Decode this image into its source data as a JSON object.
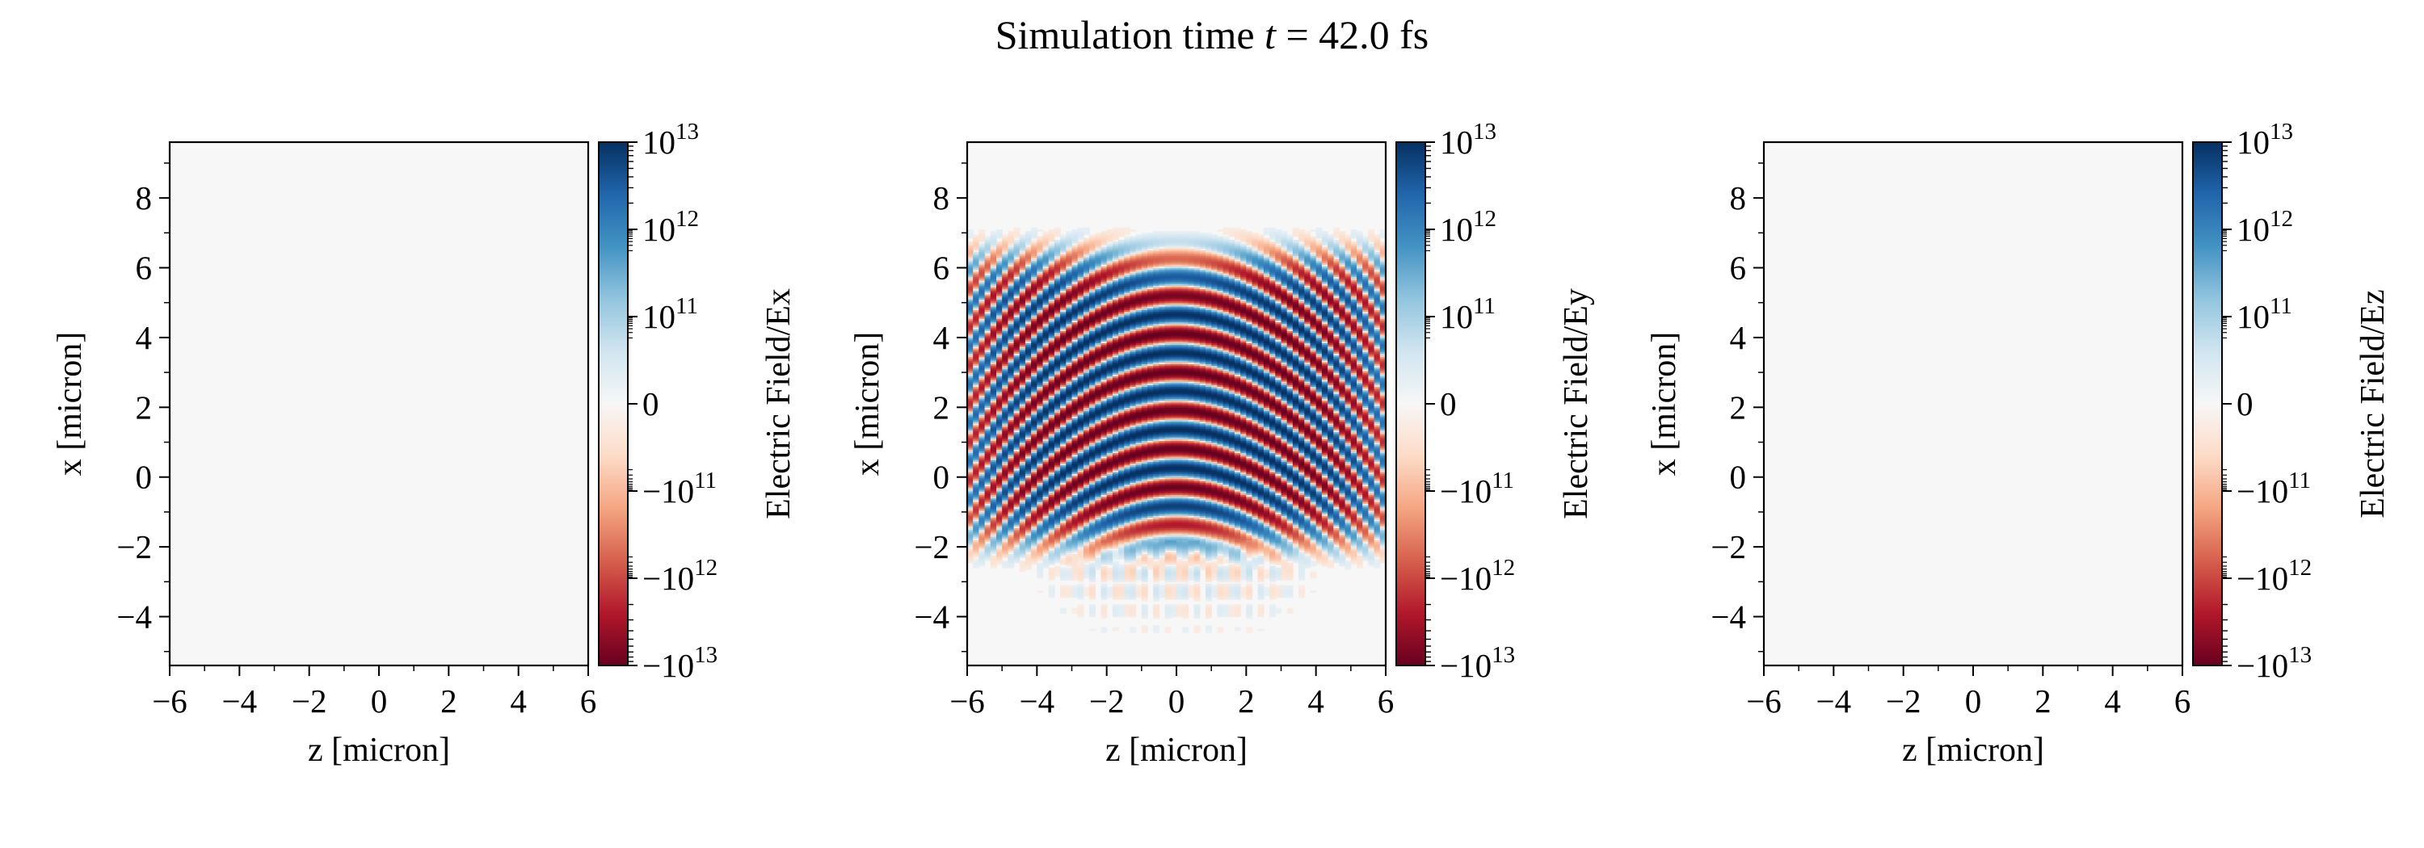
{
  "figure": {
    "title_prefix": "Simulation time ",
    "title_var": "t",
    "title_rest": " = 42.0 fs"
  },
  "chart_data": [
    {
      "type": "heatmap",
      "field": "Ex",
      "xlabel": "z [micron]",
      "ylabel": "x [micron]",
      "colorbar_label": "Electric Field/Ex",
      "xlim": [
        -6,
        6
      ],
      "ylim": [
        -5.4,
        9.6
      ],
      "xticks": [
        -6,
        -4,
        -2,
        0,
        2,
        4,
        6
      ],
      "yticks": [
        -4,
        -2,
        0,
        2,
        4,
        6,
        8
      ],
      "xtick_labels": [
        "−6",
        "−4",
        "−2",
        "0",
        "2",
        "4",
        "6"
      ],
      "ytick_labels": [
        "−4",
        "−2",
        "0",
        "2",
        "4",
        "6",
        "8"
      ],
      "colorscale": "RdBu symlog",
      "colorbar_range": [
        -10000000000000.0,
        10000000000000.0
      ],
      "colorbar_ticks": [
        {
          "base": "−10",
          "exp": "13"
        },
        {
          "base": "−10",
          "exp": "12"
        },
        {
          "base": "−10",
          "exp": "11"
        },
        {
          "base": "0",
          "exp": ""
        },
        {
          "base": "10",
          "exp": "11"
        },
        {
          "base": "10",
          "exp": "12"
        },
        {
          "base": "10",
          "exp": "13"
        }
      ],
      "field_present": false
    },
    {
      "type": "heatmap",
      "field": "Ey",
      "xlabel": "z [micron]",
      "ylabel": "x [micron]",
      "colorbar_label": "Electric Field/Ey",
      "xlim": [
        -6,
        6
      ],
      "ylim": [
        -5.4,
        9.6
      ],
      "xticks": [
        -6,
        -4,
        -2,
        0,
        2,
        4,
        6
      ],
      "yticks": [
        -4,
        -2,
        0,
        2,
        4,
        6,
        8
      ],
      "xtick_labels": [
        "−6",
        "−4",
        "−2",
        "0",
        "2",
        "4",
        "6"
      ],
      "ytick_labels": [
        "−4",
        "−2",
        "0",
        "2",
        "4",
        "6",
        "8"
      ],
      "colorscale": "RdBu symlog",
      "colorbar_range": [
        -10000000000000.0,
        10000000000000.0
      ],
      "colorbar_ticks": [
        {
          "base": "−10",
          "exp": "13"
        },
        {
          "base": "−10",
          "exp": "12"
        },
        {
          "base": "−10",
          "exp": "11"
        },
        {
          "base": "0",
          "exp": ""
        },
        {
          "base": "10",
          "exp": "11"
        },
        {
          "base": "10",
          "exp": "12"
        },
        {
          "base": "10",
          "exp": "13"
        }
      ],
      "field_present": true,
      "pulse": {
        "x_min": -1.8,
        "x_max": 6.3,
        "z_min": -6,
        "z_max": 6,
        "fringe_period": 0.55,
        "curvature": 0.012,
        "tail_x_min": -5.0
      }
    },
    {
      "type": "heatmap",
      "field": "Ez",
      "xlabel": "z [micron]",
      "ylabel": "x [micron]",
      "colorbar_label": "Electric Field/Ez",
      "xlim": [
        -6,
        6
      ],
      "ylim": [
        -5.4,
        9.6
      ],
      "xticks": [
        -6,
        -4,
        -2,
        0,
        2,
        4,
        6
      ],
      "yticks": [
        -4,
        -2,
        0,
        2,
        4,
        6,
        8
      ],
      "xtick_labels": [
        "−6",
        "−4",
        "−2",
        "0",
        "2",
        "4",
        "6"
      ],
      "ytick_labels": [
        "−4",
        "−2",
        "0",
        "2",
        "4",
        "6",
        "8"
      ],
      "colorscale": "RdBu symlog",
      "colorbar_range": [
        -10000000000000.0,
        10000000000000.0
      ],
      "colorbar_ticks": [
        {
          "base": "−10",
          "exp": "13"
        },
        {
          "base": "−10",
          "exp": "12"
        },
        {
          "base": "−10",
          "exp": "11"
        },
        {
          "base": "0",
          "exp": ""
        },
        {
          "base": "10",
          "exp": "11"
        },
        {
          "base": "10",
          "exp": "12"
        },
        {
          "base": "10",
          "exp": "13"
        }
      ],
      "field_present": false
    }
  ]
}
